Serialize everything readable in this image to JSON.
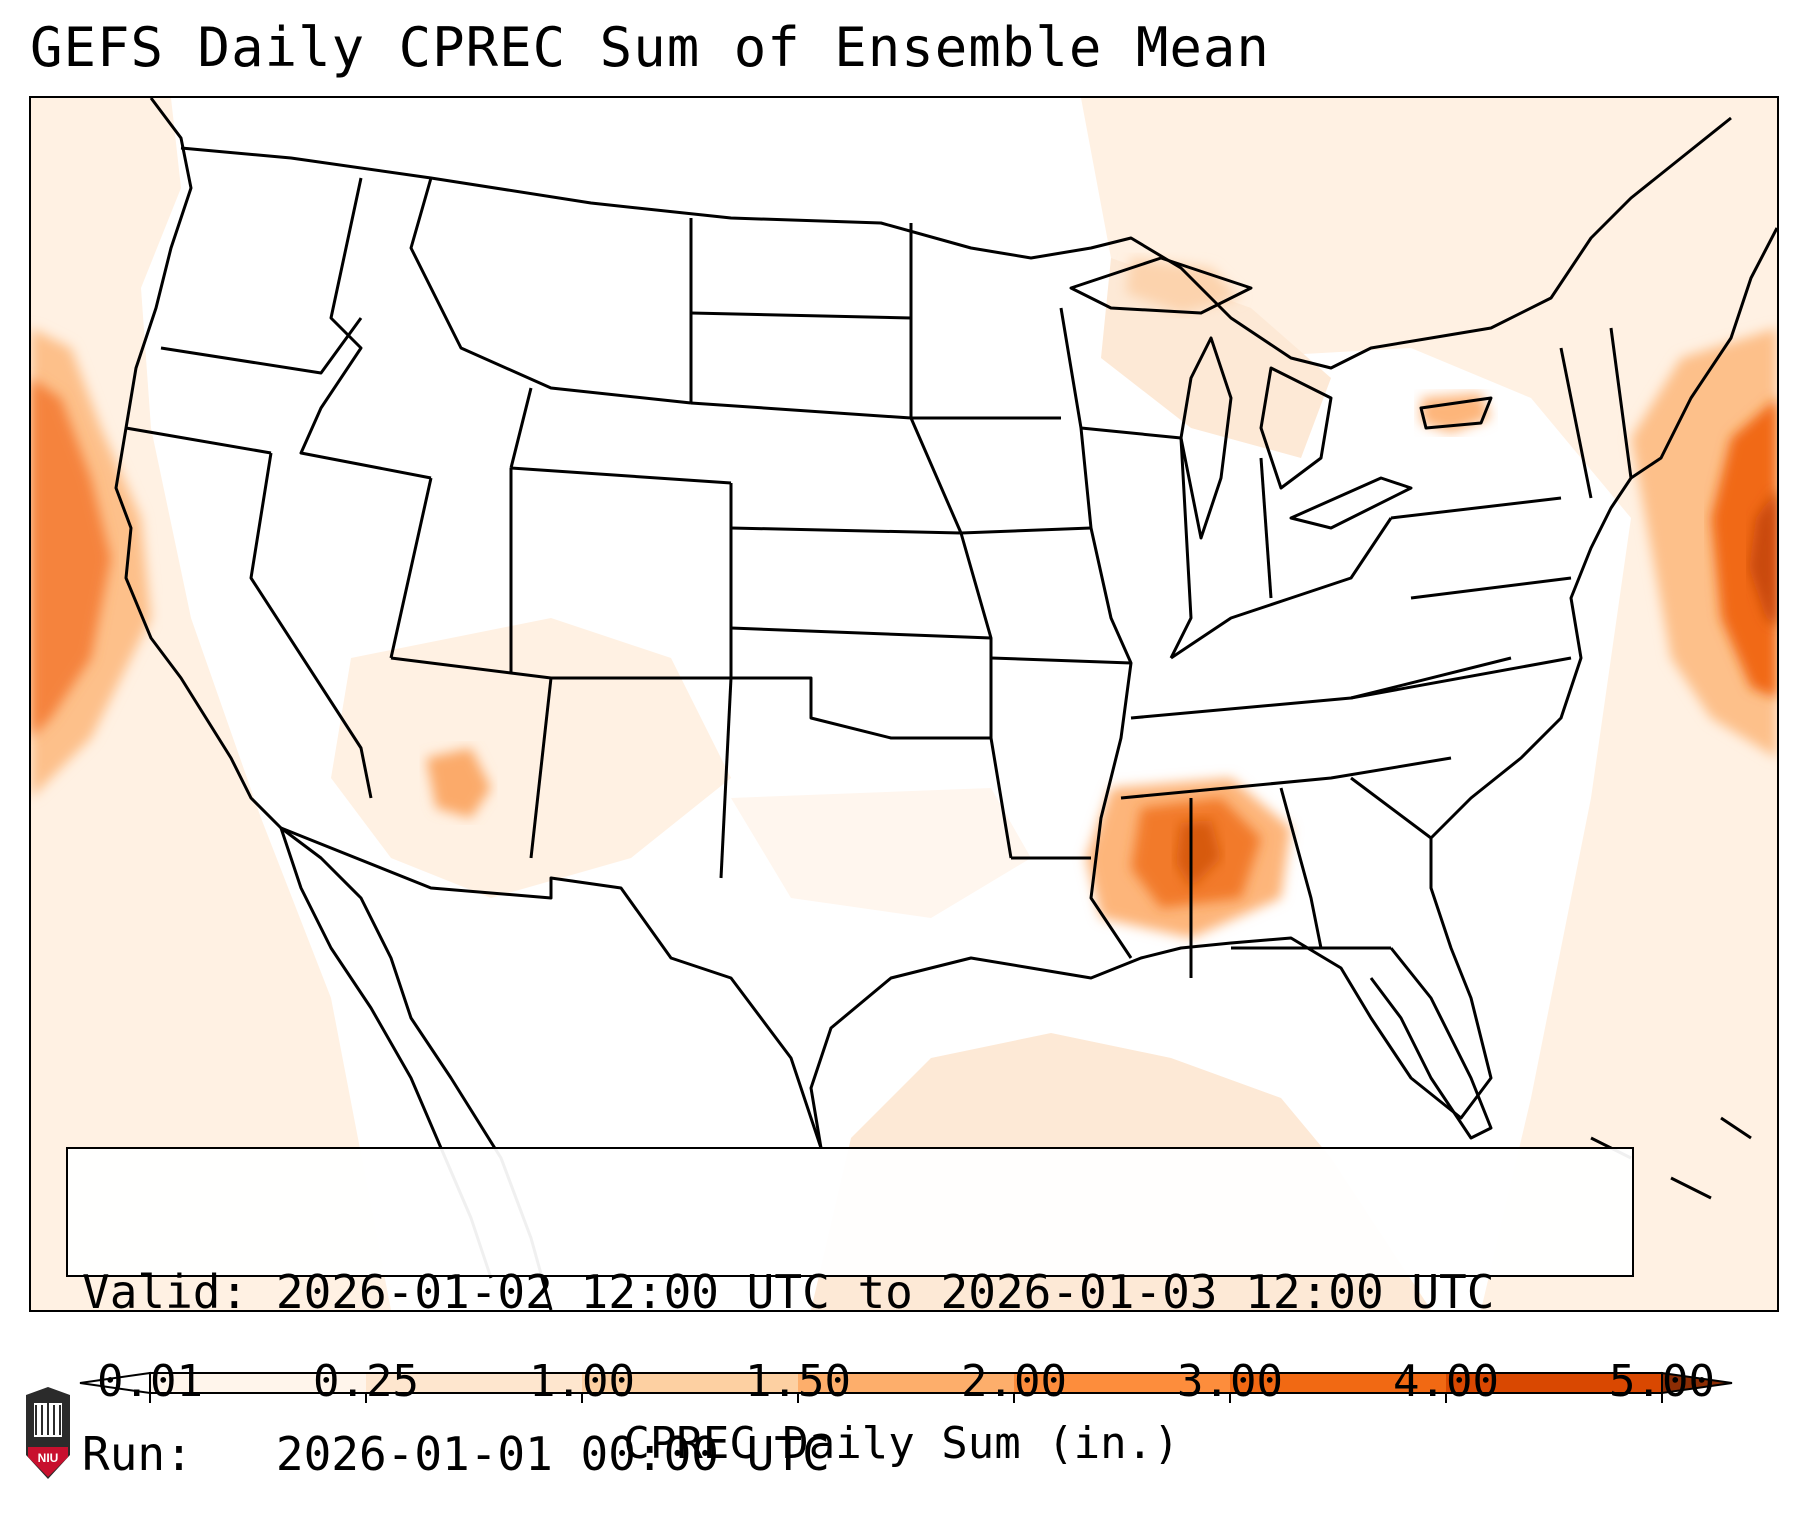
{
  "title": "GEFS Daily CPREC Sum of Ensemble Mean",
  "info": {
    "valid_label": "Valid:",
    "valid_value": "2026-01-02 12:00 UTC to 2026-01-03 12:00 UTC",
    "run_label": "Run:",
    "run_value": "2026-01-01 00:00 UTC"
  },
  "colorbar": {
    "label": "CPREC Daily Sum (in.)",
    "ticks": [
      "0.01",
      "0.25",
      "1.00",
      "1.50",
      "2.00",
      "3.00",
      "4.00",
      "5.00"
    ],
    "colors": [
      "#fff5eb",
      "#fee6ce",
      "#fdd0a2",
      "#fdae6b",
      "#fd8d3c",
      "#f16913",
      "#d94801",
      "#8c2d04"
    ]
  },
  "logo": {
    "text": "NIU"
  },
  "map": {
    "region": "CONUS",
    "precip_areas": [
      {
        "name": "Pacific offshore",
        "level": "1.50-3.00"
      },
      {
        "name": "Mississippi / Alabama",
        "level": "2.00-4.00"
      },
      {
        "name": "Western Atlantic",
        "level": "2.00-4.00"
      },
      {
        "name": "Arizona",
        "level": "1.00-1.50"
      },
      {
        "name": "Gulf of Mexico",
        "level": "0.25-1.00"
      }
    ]
  }
}
